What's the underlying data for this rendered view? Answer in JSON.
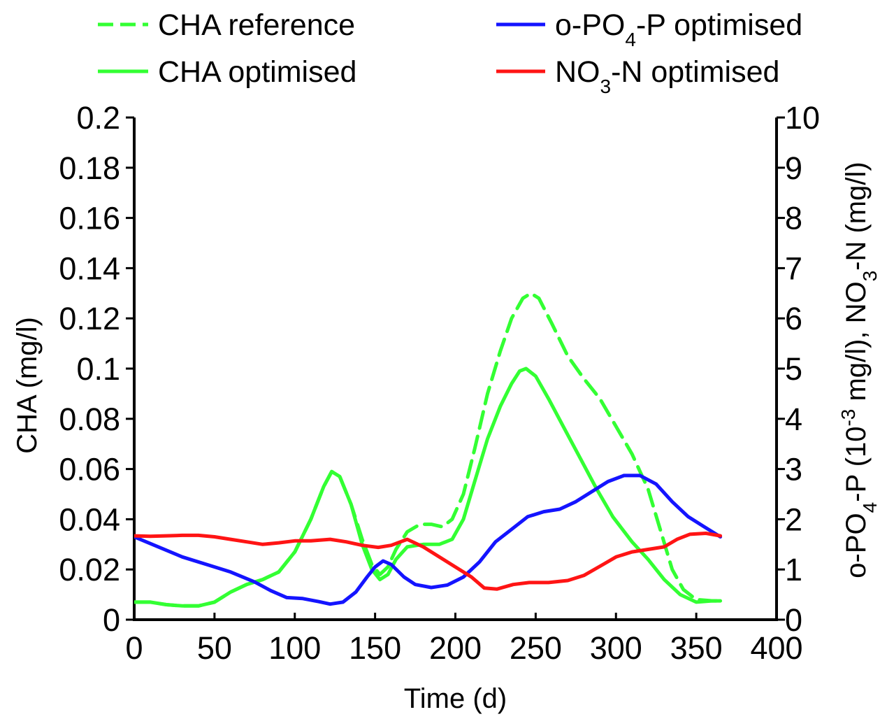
{
  "chart_data": {
    "type": "line",
    "xlabel": "Time (d)",
    "ylabel_left": "CHA (mg/l)",
    "ylabel_right": "o-PO4-P (10-3 mg/l), NO3-N (mg/l)",
    "ylabel_right_parts": [
      {
        "text": "o-PO",
        "sub": false
      },
      {
        "text": "4",
        "sub": true
      },
      {
        "text": "-P (10",
        "sub": false
      },
      {
        "text": "-3",
        "sup": true
      },
      {
        "text": " mg/l), NO",
        "sub": false
      },
      {
        "text": "3",
        "sub": true
      },
      {
        "text": "-N (mg/l)",
        "sub": false
      }
    ],
    "xlim": [
      0,
      400
    ],
    "ylim_left": [
      0,
      0.2
    ],
    "ylim_right": [
      0,
      10
    ],
    "x_ticks": [
      "0",
      "50",
      "100",
      "150",
      "200",
      "250",
      "300",
      "350",
      "400"
    ],
    "y_left_ticks": [
      "0",
      "0.02",
      "0.04",
      "0.06",
      "0.08",
      "0.1",
      "0.12",
      "0.14",
      "0.16",
      "0.18",
      "0.2"
    ],
    "y_right_ticks": [
      "0",
      "1",
      "2",
      "3",
      "4",
      "5",
      "6",
      "7",
      "8",
      "9",
      "10"
    ],
    "grid": false,
    "legend_position": "top",
    "series": [
      {
        "name": "CHA reference",
        "legend_parts": [
          {
            "text": "CHA reference"
          }
        ],
        "axis": "left",
        "color": "#33ff33",
        "style": "dashed",
        "points": [
          [
            0,
            0.007
          ],
          [
            10,
            0.007
          ],
          [
            20,
            0.006
          ],
          [
            30,
            0.0055
          ],
          [
            40,
            0.0055
          ],
          [
            50,
            0.007
          ],
          [
            60,
            0.011
          ],
          [
            70,
            0.014
          ],
          [
            80,
            0.016
          ],
          [
            90,
            0.019
          ],
          [
            100,
            0.027
          ],
          [
            110,
            0.04
          ],
          [
            118,
            0.053
          ],
          [
            123,
            0.059
          ],
          [
            128,
            0.057
          ],
          [
            135,
            0.046
          ],
          [
            142,
            0.032
          ],
          [
            148,
            0.022
          ],
          [
            153,
            0.018
          ],
          [
            158,
            0.021
          ],
          [
            163,
            0.028
          ],
          [
            170,
            0.035
          ],
          [
            178,
            0.038
          ],
          [
            185,
            0.038
          ],
          [
            192,
            0.037
          ],
          [
            198,
            0.04
          ],
          [
            205,
            0.05
          ],
          [
            212,
            0.068
          ],
          [
            220,
            0.09
          ],
          [
            228,
            0.107
          ],
          [
            235,
            0.12
          ],
          [
            242,
            0.128
          ],
          [
            247,
            0.13
          ],
          [
            252,
            0.128
          ],
          [
            260,
            0.118
          ],
          [
            270,
            0.105
          ],
          [
            280,
            0.096
          ],
          [
            290,
            0.088
          ],
          [
            300,
            0.077
          ],
          [
            310,
            0.066
          ],
          [
            320,
            0.052
          ],
          [
            328,
            0.035
          ],
          [
            335,
            0.02
          ],
          [
            342,
            0.012
          ],
          [
            350,
            0.008
          ],
          [
            360,
            0.0075
          ],
          [
            365,
            0.0075
          ]
        ]
      },
      {
        "name": "CHA optimised",
        "legend_parts": [
          {
            "text": "CHA optimised"
          }
        ],
        "axis": "left",
        "color": "#33ff33",
        "style": "solid",
        "points": [
          [
            0,
            0.007
          ],
          [
            10,
            0.007
          ],
          [
            20,
            0.006
          ],
          [
            30,
            0.0055
          ],
          [
            40,
            0.0055
          ],
          [
            50,
            0.007
          ],
          [
            60,
            0.011
          ],
          [
            70,
            0.014
          ],
          [
            80,
            0.016
          ],
          [
            90,
            0.019
          ],
          [
            100,
            0.027
          ],
          [
            110,
            0.04
          ],
          [
            118,
            0.053
          ],
          [
            123,
            0.059
          ],
          [
            128,
            0.057
          ],
          [
            135,
            0.046
          ],
          [
            142,
            0.03
          ],
          [
            148,
            0.02
          ],
          [
            153,
            0.016
          ],
          [
            158,
            0.018
          ],
          [
            163,
            0.024
          ],
          [
            170,
            0.029
          ],
          [
            180,
            0.03
          ],
          [
            190,
            0.03
          ],
          [
            198,
            0.032
          ],
          [
            205,
            0.04
          ],
          [
            212,
            0.055
          ],
          [
            220,
            0.072
          ],
          [
            228,
            0.085
          ],
          [
            235,
            0.094
          ],
          [
            240,
            0.099
          ],
          [
            244,
            0.1
          ],
          [
            250,
            0.097
          ],
          [
            258,
            0.088
          ],
          [
            268,
            0.076
          ],
          [
            278,
            0.064
          ],
          [
            288,
            0.052
          ],
          [
            298,
            0.041
          ],
          [
            310,
            0.031
          ],
          [
            320,
            0.024
          ],
          [
            330,
            0.016
          ],
          [
            340,
            0.01
          ],
          [
            350,
            0.007
          ],
          [
            360,
            0.0075
          ],
          [
            365,
            0.0075
          ]
        ]
      },
      {
        "name": "o-PO4-P optimised",
        "legend_parts": [
          {
            "text": "o-PO"
          },
          {
            "text": "4",
            "sub": true
          },
          {
            "text": "-P optimised"
          }
        ],
        "axis": "right",
        "color": "#1414ff",
        "style": "solid",
        "points": [
          [
            0,
            1.65
          ],
          [
            15,
            1.45
          ],
          [
            30,
            1.25
          ],
          [
            45,
            1.1
          ],
          [
            60,
            0.95
          ],
          [
            75,
            0.75
          ],
          [
            85,
            0.58
          ],
          [
            95,
            0.44
          ],
          [
            105,
            0.42
          ],
          [
            115,
            0.36
          ],
          [
            122,
            0.31
          ],
          [
            130,
            0.35
          ],
          [
            138,
            0.55
          ],
          [
            145,
            0.85
          ],
          [
            150,
            1.05
          ],
          [
            155,
            1.17
          ],
          [
            160,
            1.1
          ],
          [
            168,
            0.85
          ],
          [
            175,
            0.7
          ],
          [
            185,
            0.64
          ],
          [
            195,
            0.69
          ],
          [
            205,
            0.85
          ],
          [
            215,
            1.15
          ],
          [
            225,
            1.55
          ],
          [
            235,
            1.8
          ],
          [
            245,
            2.05
          ],
          [
            255,
            2.15
          ],
          [
            265,
            2.2
          ],
          [
            275,
            2.35
          ],
          [
            285,
            2.55
          ],
          [
            295,
            2.75
          ],
          [
            305,
            2.87
          ],
          [
            315,
            2.87
          ],
          [
            325,
            2.7
          ],
          [
            335,
            2.35
          ],
          [
            345,
            2.05
          ],
          [
            355,
            1.85
          ],
          [
            365,
            1.65
          ]
        ]
      },
      {
        "name": "NO3-N optimised",
        "legend_parts": [
          {
            "text": "NO"
          },
          {
            "text": "3",
            "sub": true
          },
          {
            "text": "-N optimised"
          }
        ],
        "axis": "right",
        "color": "#ff1414",
        "style": "solid",
        "points": [
          [
            0,
            1.67
          ],
          [
            10,
            1.66
          ],
          [
            20,
            1.67
          ],
          [
            30,
            1.68
          ],
          [
            40,
            1.68
          ],
          [
            50,
            1.65
          ],
          [
            60,
            1.6
          ],
          [
            70,
            1.55
          ],
          [
            80,
            1.5
          ],
          [
            90,
            1.53
          ],
          [
            100,
            1.57
          ],
          [
            110,
            1.57
          ],
          [
            122,
            1.6
          ],
          [
            132,
            1.55
          ],
          [
            142,
            1.48
          ],
          [
            152,
            1.44
          ],
          [
            160,
            1.48
          ],
          [
            170,
            1.6
          ],
          [
            180,
            1.45
          ],
          [
            190,
            1.25
          ],
          [
            200,
            1.05
          ],
          [
            210,
            0.85
          ],
          [
            218,
            0.63
          ],
          [
            226,
            0.61
          ],
          [
            236,
            0.7
          ],
          [
            246,
            0.74
          ],
          [
            258,
            0.74
          ],
          [
            270,
            0.78
          ],
          [
            280,
            0.88
          ],
          [
            292,
            1.1
          ],
          [
            300,
            1.25
          ],
          [
            310,
            1.35
          ],
          [
            320,
            1.4
          ],
          [
            330,
            1.45
          ],
          [
            338,
            1.6
          ],
          [
            346,
            1.7
          ],
          [
            356,
            1.72
          ],
          [
            365,
            1.67
          ]
        ]
      }
    ]
  }
}
